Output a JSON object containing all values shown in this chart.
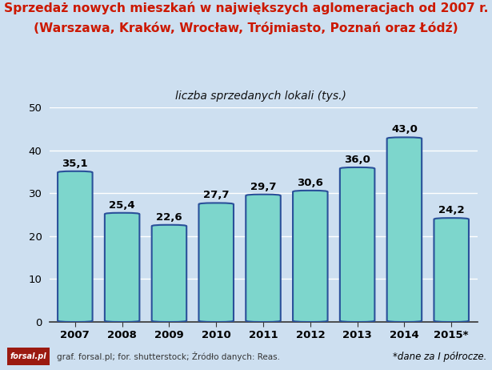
{
  "title_line1": "Sprzedaż nowych mieszkań w największych aglomeracjach od 2007 r.",
  "title_line2": "(Warszawa, Kraków, Wrocław, Trójmiasto, Poznań oraz Łódź)",
  "ylabel": "liczba sprzedanych lokali (tys.)",
  "categories": [
    "2007",
    "2008",
    "2009",
    "2010",
    "2011",
    "2012",
    "2013",
    "2014",
    "2015*"
  ],
  "values": [
    35.1,
    25.4,
    22.6,
    27.7,
    29.7,
    30.6,
    36.0,
    43.0,
    24.2
  ],
  "bar_color": "#7dd6cc",
  "bar_edge_color": "#2a509a",
  "ylim": [
    0,
    50
  ],
  "yticks": [
    0,
    10,
    20,
    30,
    40,
    50
  ],
  "title_color": "#cc1800",
  "label_color": "#000000",
  "background_color": "#cddff0",
  "grid_color": "#ffffff",
  "footer_text": "graf. forsal.pl; for. shutterstock; Źródło danych: Reas.",
  "footnote_text": "*dane za I półrocze.",
  "logo_text": "forsal.pl",
  "logo_bg": "#9b1a10",
  "logo_text_color": "#ffffff"
}
